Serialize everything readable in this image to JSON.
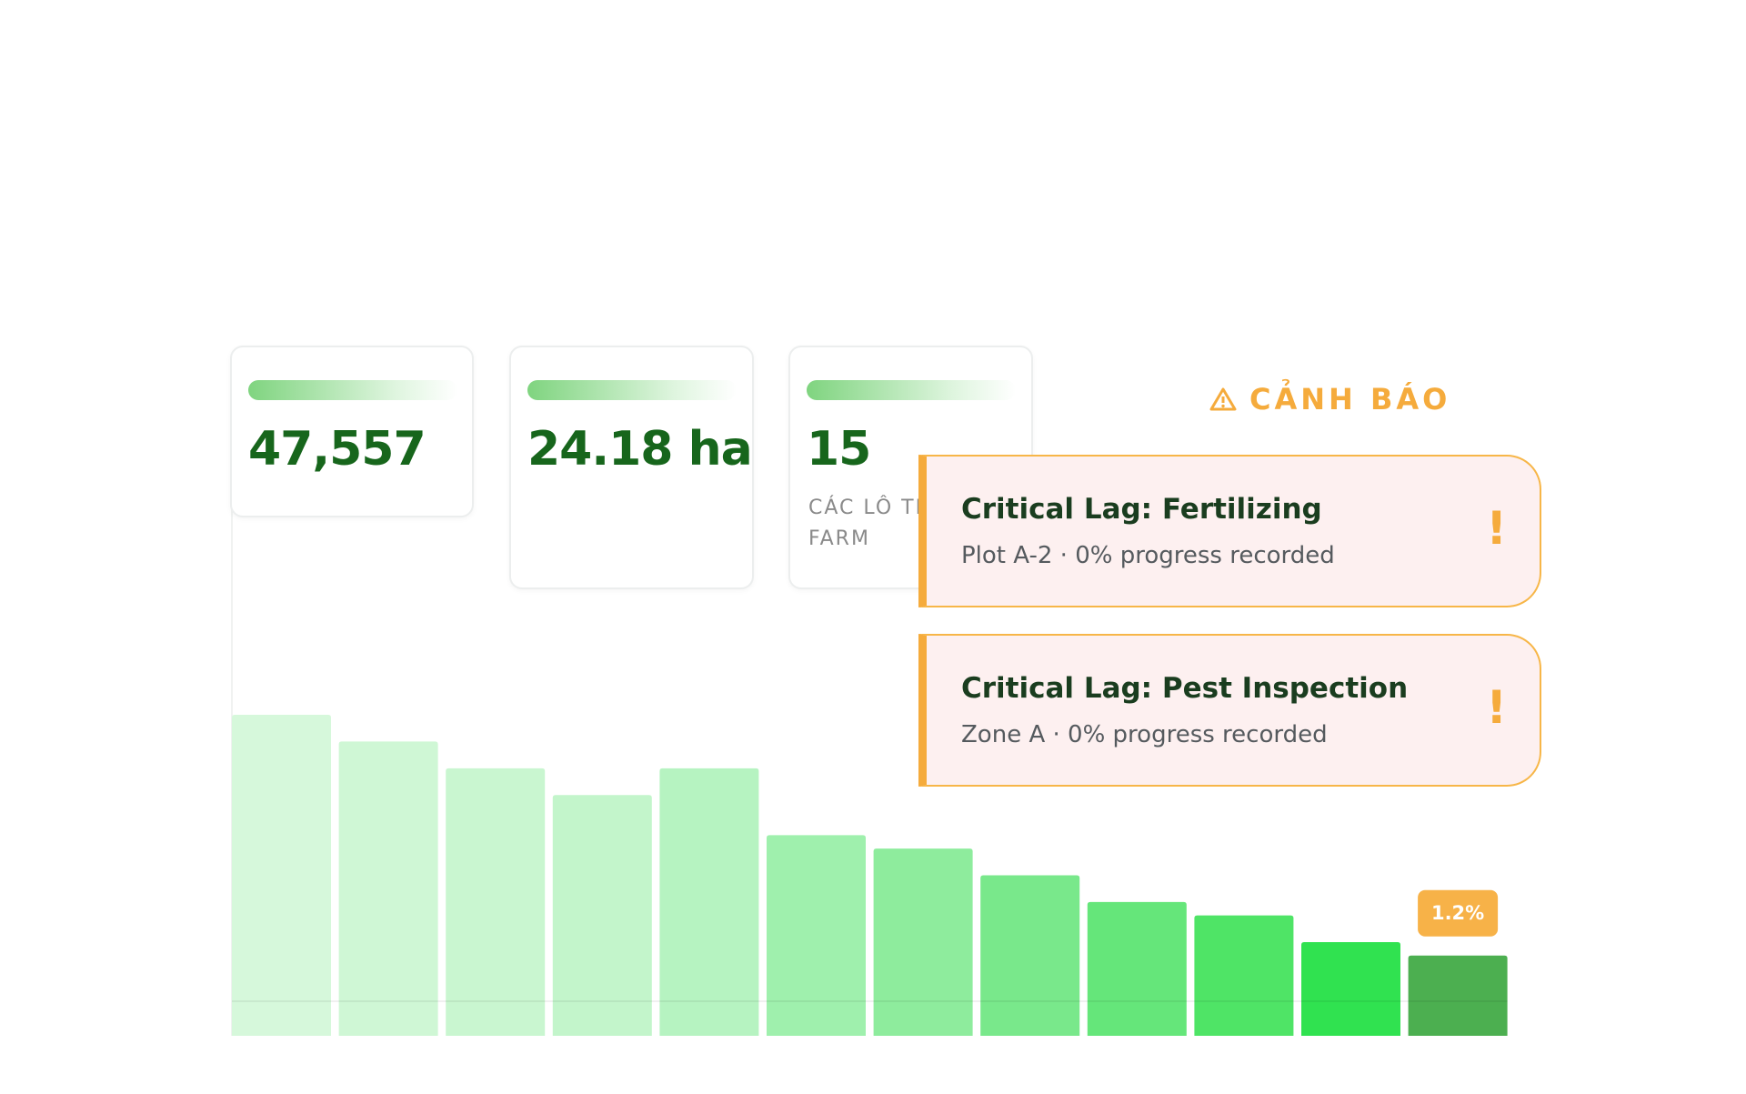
{
  "stats": [
    {
      "value": "47,557"
    },
    {
      "value": "24.18 ha"
    },
    {
      "value": "15",
      "label_lines": [
        "CÁC LÔ TR",
        "FARM"
      ]
    }
  ],
  "alerts": {
    "heading": "CẢNH BÁO",
    "items": [
      {
        "title": "Critical Lag: Fertilizing",
        "detail": "Plot A-2 · 0% progress recorded",
        "icon": "!"
      },
      {
        "title": "Critical Lag: Pest Inspection",
        "detail": "Zone A · 0% progress recorded",
        "icon": "!"
      }
    ]
  },
  "chart_data": {
    "type": "bar",
    "categories": [
      null,
      null,
      null,
      null,
      null,
      null,
      null,
      null,
      null,
      null,
      null,
      null
    ],
    "values": [
      4.8,
      4.4,
      4.0,
      3.6,
      4.0,
      3.0,
      2.8,
      2.4,
      2.0,
      1.8,
      1.4,
      1.2
    ],
    "value_labels": [
      null,
      null,
      null,
      null,
      null,
      null,
      null,
      null,
      null,
      null,
      null,
      "1.2%"
    ],
    "colors": [
      "#d6f8db",
      "#cff7d5",
      "#c9f6d0",
      "#c3f5cb",
      "#b6f3c1",
      "#9ff0ad",
      "#8eec9d",
      "#79e88b",
      "#65e67a",
      "#4fe466",
      "#30e250",
      "#4caf50"
    ]
  }
}
